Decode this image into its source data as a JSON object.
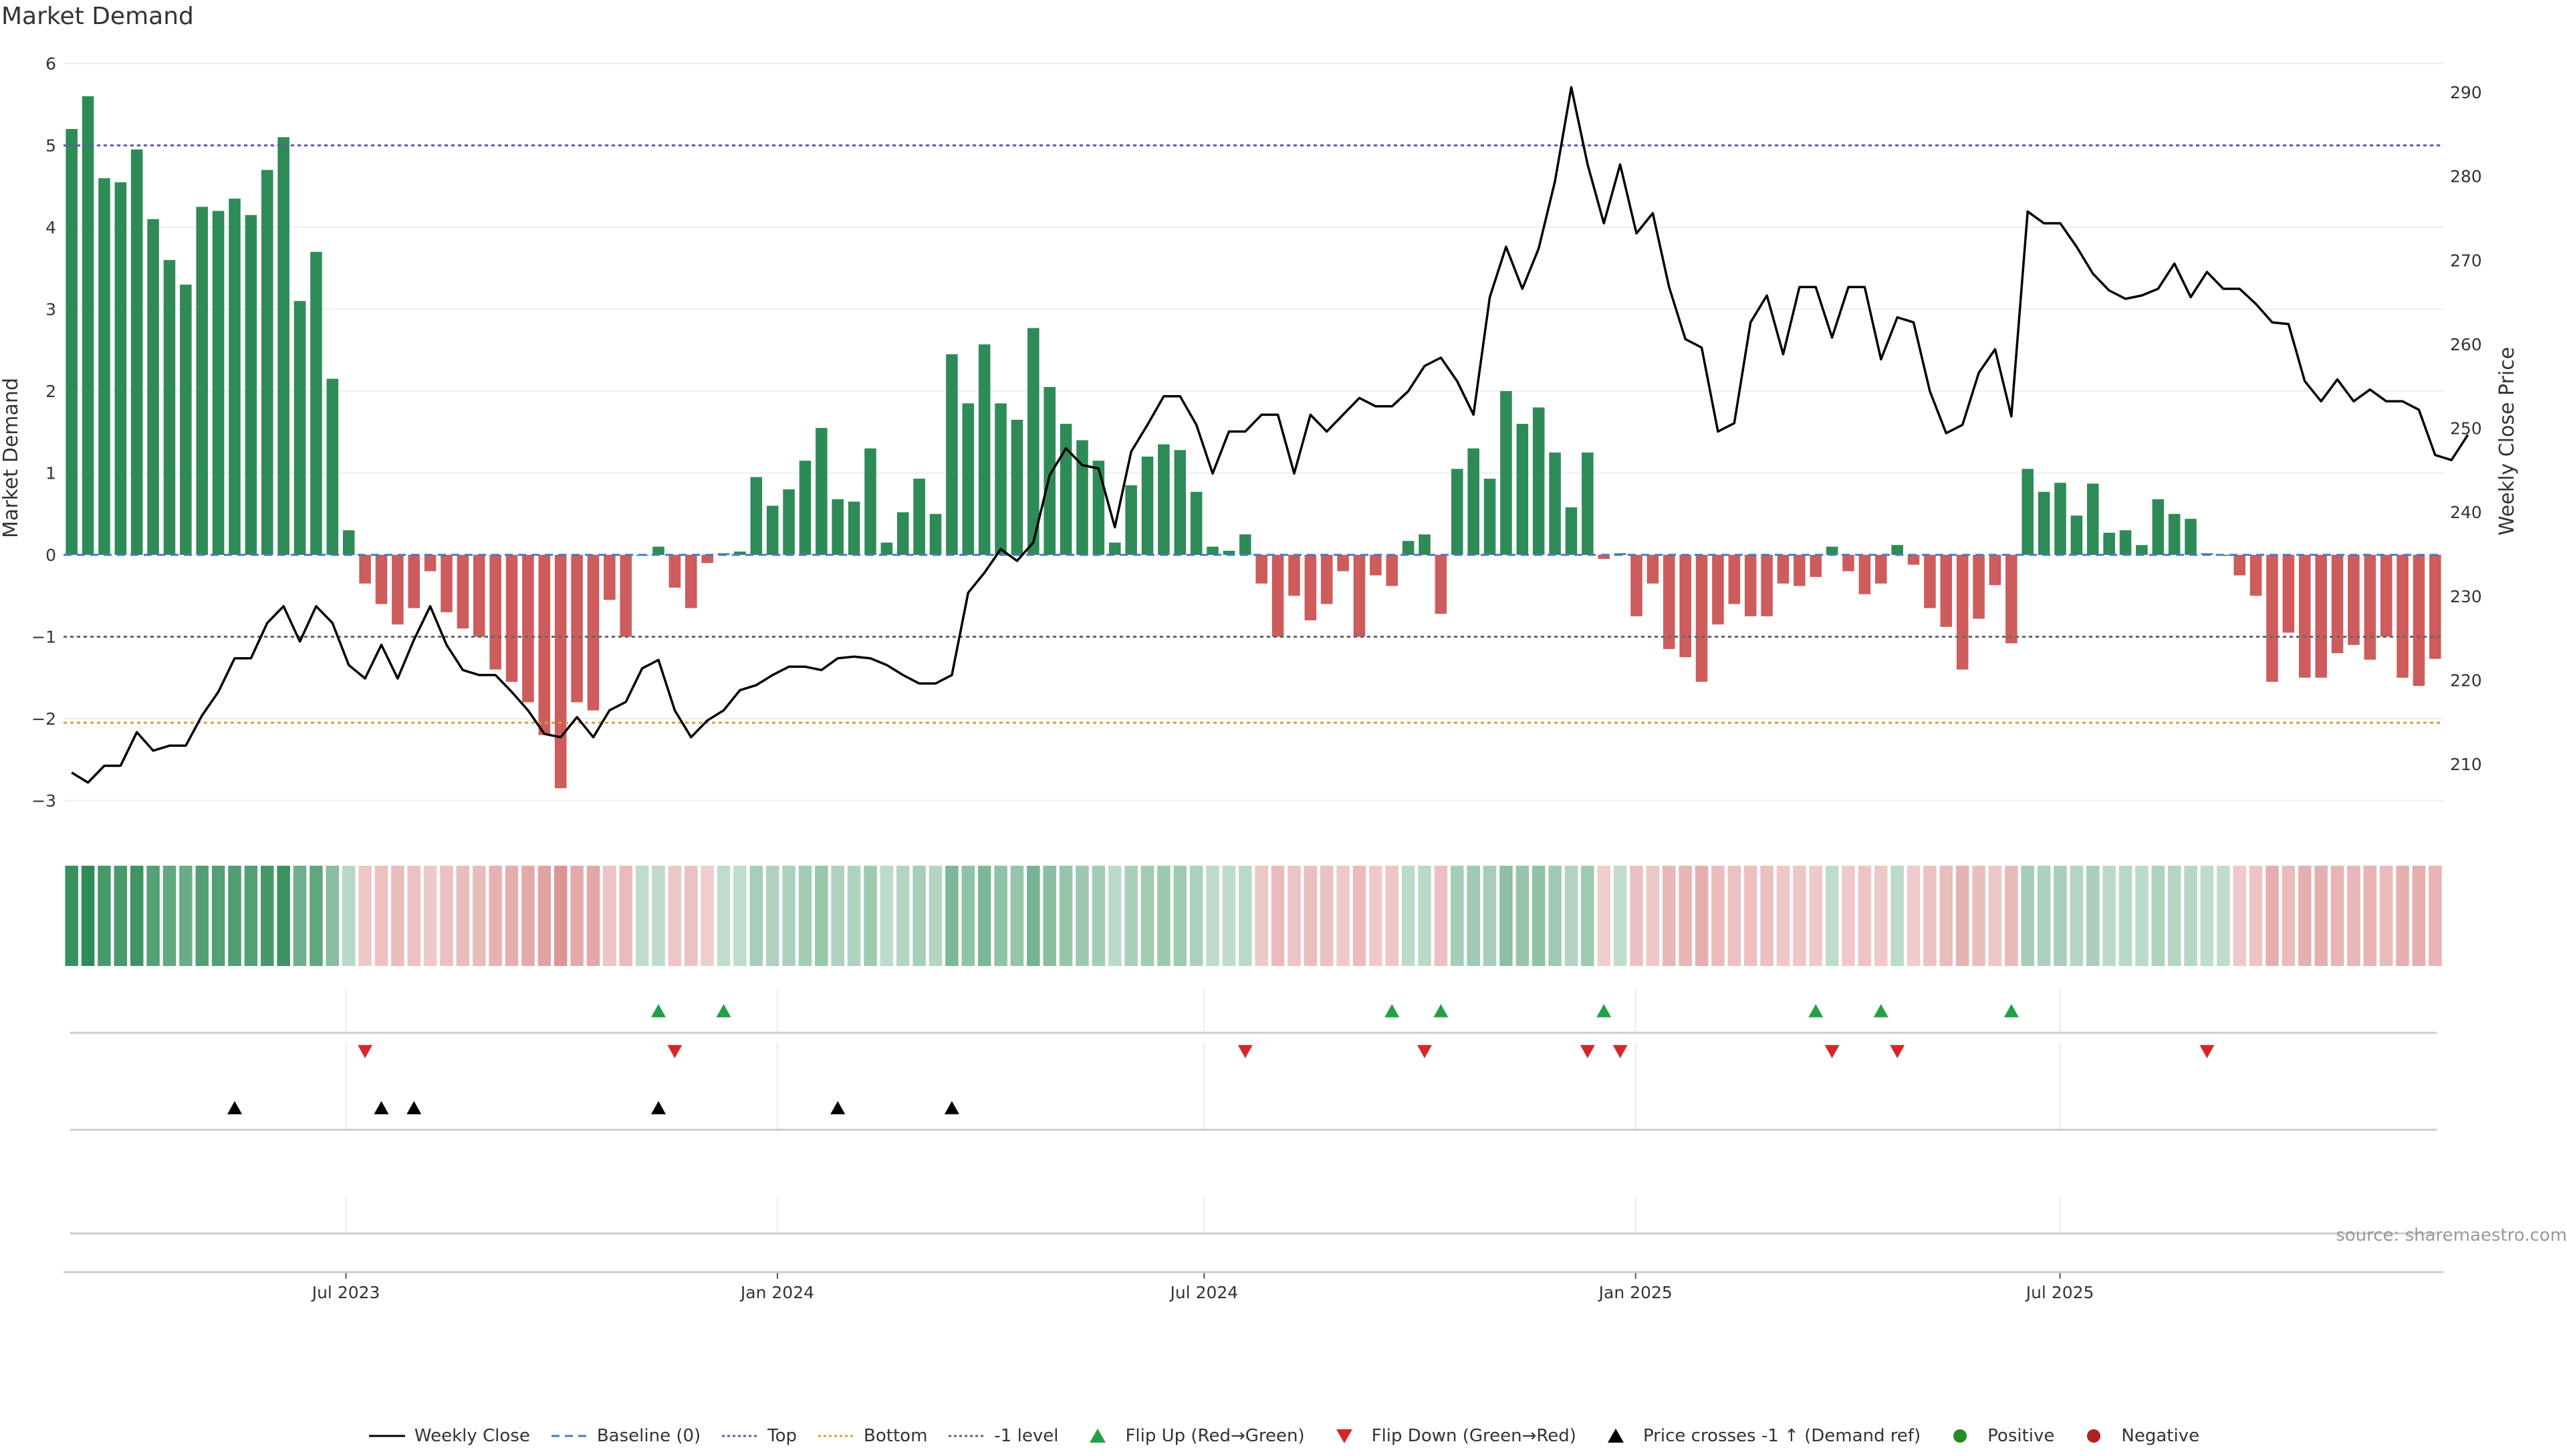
{
  "chart_data": {
    "title": "Market Demand",
    "type": "bar",
    "left_axis": {
      "label": "Market Demand",
      "ylim": [
        -3.3,
        6.0
      ],
      "ticks": [
        6,
        5,
        4,
        3,
        2,
        1,
        0,
        -1,
        -2,
        -3
      ],
      "tick_labels": [
        "6",
        "5",
        "4",
        "3",
        "2",
        "1",
        "0",
        "−1",
        "−2",
        "−3"
      ]
    },
    "right_axis": {
      "label": "Weekly Close Price",
      "ylim": [
        205,
        292
      ],
      "ticks": [
        290,
        280,
        270,
        260,
        250,
        240,
        230,
        220,
        210
      ],
      "tick_labels": [
        "290",
        "280",
        "270",
        "260",
        "250",
        "240",
        "230",
        "220",
        "210"
      ]
    },
    "x_start_date": "2023-03-06",
    "x_end_date": "2025-12-08",
    "x_ticks": [
      {
        "label": "Jul 2023",
        "date": "2023-07-01"
      },
      {
        "label": "Jan 2024",
        "date": "2024-01-01"
      },
      {
        "label": "Jul 2024",
        "date": "2024-07-01"
      },
      {
        "label": "Jan 2025",
        "date": "2025-01-01"
      },
      {
        "label": "Jul 2025",
        "date": "2025-07-01"
      }
    ],
    "reference_lines": [
      {
        "name": "Baseline (0)",
        "y": 0,
        "color": "#4a78c2"
      },
      {
        "name": "Top",
        "y": 5,
        "color": "#5b5bb0"
      },
      {
        "name": "Bottom",
        "y": -2.05,
        "color": "#e39b2b"
      },
      {
        "name": "-1 level",
        "y": -1,
        "color": "#666666"
      }
    ],
    "series": [
      {
        "name": "Market Demand",
        "type": "bar",
        "positive_color": "#2e8b57",
        "negative_color": "#cd5c5c",
        "values": [
          5.2,
          5.6,
          4.6,
          4.55,
          4.95,
          4.1,
          3.6,
          3.3,
          4.25,
          4.2,
          4.35,
          4.15,
          4.7,
          5.1,
          3.1,
          3.7,
          2.15,
          0.3,
          -0.35,
          -0.6,
          -0.85,
          -0.65,
          -0.2,
          -0.7,
          -0.9,
          -1.0,
          -1.4,
          -1.55,
          -1.8,
          -2.2,
          -2.85,
          -1.8,
          -1.9,
          -0.55,
          -1.0,
          0.0,
          0.1,
          -0.4,
          -0.65,
          -0.1,
          0.02,
          0.04,
          0.95,
          0.6,
          0.8,
          1.15,
          1.55,
          0.68,
          0.65,
          1.3,
          0.15,
          0.52,
          0.93,
          0.5,
          2.45,
          1.85,
          2.57,
          1.85,
          1.65,
          2.77,
          2.05,
          1.6,
          1.4,
          1.15,
          0.15,
          0.85,
          1.2,
          1.35,
          1.28,
          0.77,
          0.1,
          0.05,
          0.25,
          -0.35,
          -1.0,
          -0.5,
          -0.8,
          -0.6,
          -0.2,
          -1.0,
          -0.25,
          -0.38,
          0.17,
          0.25,
          -0.72,
          1.05,
          1.3,
          0.93,
          2.0,
          1.6,
          1.8,
          1.25,
          0.58,
          1.25,
          -0.05,
          0.02,
          -0.75,
          -0.35,
          -1.15,
          -1.25,
          -1.55,
          -0.85,
          -0.6,
          -0.75,
          -0.75,
          -0.35,
          -0.38,
          -0.27,
          0.1,
          -0.2,
          -0.48,
          -0.35,
          0.12,
          -0.12,
          -0.65,
          -0.88,
          -1.4,
          -0.78,
          -0.37,
          -1.08,
          1.05,
          0.77,
          0.88,
          0.48,
          0.87,
          0.27,
          0.3,
          0.12,
          0.68,
          0.5,
          0.44,
          0.02,
          0.0,
          -0.25,
          -0.5,
          -1.55,
          -0.95,
          -1.5,
          -1.5,
          -1.2,
          -1.1,
          -1.28,
          -1.0,
          -1.5,
          -1.6,
          -1.27
        ]
      },
      {
        "name": "Weekly Close",
        "type": "line",
        "color": "#000000",
        "values": [
          209,
          207.8,
          209.8,
          209.8,
          213.8,
          211.6,
          212.2,
          212.2,
          215.8,
          218.6,
          222.6,
          222.6,
          226.8,
          228.8,
          224.6,
          228.8,
          226.8,
          221.8,
          220.2,
          224.2,
          220.2,
          224.8,
          228.8,
          224.2,
          221.2,
          220.6,
          220.6,
          218.6,
          216.4,
          213.6,
          213.2,
          215.6,
          213.2,
          216.4,
          217.4,
          221.4,
          222.4,
          216.4,
          213.2,
          215.2,
          216.4,
          218.8,
          219.4,
          220.6,
          221.6,
          221.6,
          221.2,
          222.6,
          222.8,
          222.6,
          221.8,
          220.6,
          219.6,
          219.6,
          220.6,
          230.4,
          232.8,
          235.6,
          234.2,
          236.4,
          244.4,
          247.6,
          245.6,
          245.2,
          238.2,
          247.2,
          250.4,
          253.8,
          253.8,
          250.4,
          244.6,
          249.6,
          249.6,
          251.6,
          251.6,
          244.6,
          251.6,
          249.6,
          251.6,
          253.6,
          252.6,
          252.6,
          254.4,
          257.4,
          258.4,
          255.6,
          251.6,
          265.6,
          271.6,
          266.6,
          271.4,
          279.4,
          290.6,
          281.4,
          274.4,
          281.4,
          273.2,
          275.6,
          266.8,
          260.6,
          259.6,
          249.6,
          250.6,
          262.6,
          265.8,
          258.8,
          266.8,
          266.8,
          260.8,
          266.8,
          266.8,
          258.2,
          263.2,
          262.6,
          254.4,
          249.4,
          250.4,
          256.6,
          259.4,
          251.4,
          275.8,
          274.4,
          274.4,
          271.6,
          268.4,
          266.4,
          265.4,
          265.8,
          266.6,
          269.6,
          265.6,
          268.6,
          266.6,
          266.6,
          264.8,
          262.6,
          262.4,
          255.6,
          253.2,
          255.8,
          253.2,
          254.6,
          253.2,
          253.2,
          252.2,
          246.8,
          246.2,
          249.2
        ]
      },
      {
        "name": "Price crosses -1 ↑ (Demand ref)",
        "type": "marker",
        "color": "#000000",
        "week_indices": [
          10,
          19,
          21,
          36,
          47,
          54
        ]
      }
    ],
    "annotation_rows": {
      "heat_strip": {
        "description": "color strip",
        "positive_color": "#2e8b57",
        "negative_color": "#cd5c5c"
      },
      "flip_up": {
        "name": "Flip Up (Red→Green)",
        "color": "#22a045",
        "week_indices": [
          36,
          40,
          81,
          84,
          94,
          107,
          111,
          119
        ]
      },
      "flip_down": {
        "name": "Flip Down (Green→Red)",
        "color": "#d62728",
        "week_indices": [
          18,
          37,
          72,
          83,
          93,
          95,
          108,
          112,
          131
        ]
      }
    },
    "legend": {
      "placement": "bottom-center",
      "entries": [
        {
          "label": "Weekly Close",
          "kind": "line",
          "color": "#000000",
          "dash": ""
        },
        {
          "label": "Baseline (0)",
          "kind": "line",
          "color": "#4a78c2",
          "dash": "12 8"
        },
        {
          "label": "Top",
          "kind": "line",
          "color": "#5b5bb0",
          "dash": "4 4"
        },
        {
          "label": "Bottom",
          "kind": "line",
          "color": "#e39b2b",
          "dash": "4 4"
        },
        {
          "label": "-1 level",
          "kind": "line",
          "color": "#666666",
          "dash": "4 4"
        },
        {
          "label": "Flip Up (Red→Green)",
          "kind": "triangle-up",
          "color": "#22a045"
        },
        {
          "label": "Flip Down (Green→Red)",
          "kind": "triangle-down",
          "color": "#d62728"
        },
        {
          "label": "Price crosses -1 ↑ (Demand ref)",
          "kind": "triangle-up",
          "color": "#000000"
        },
        {
          "label": "Positive",
          "kind": "dot",
          "color": "#228b22"
        },
        {
          "label": "Negative",
          "kind": "dot",
          "color": "#b22222"
        }
      ]
    },
    "source_note": "source: sharemaestro.com"
  }
}
